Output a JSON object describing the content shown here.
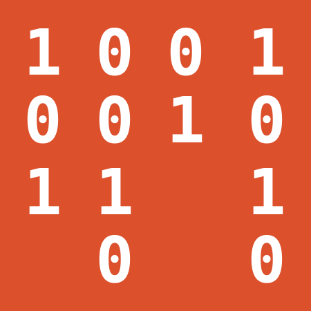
{
  "colors": {
    "background": "#dc502c",
    "digit": "#ffffff"
  },
  "rows": [
    [
      "1",
      "0",
      "0",
      "1"
    ],
    [
      "0",
      "0",
      "1",
      "0"
    ],
    [
      "1",
      "1",
      "",
      "1"
    ],
    [
      "",
      "0",
      "",
      "0"
    ]
  ]
}
